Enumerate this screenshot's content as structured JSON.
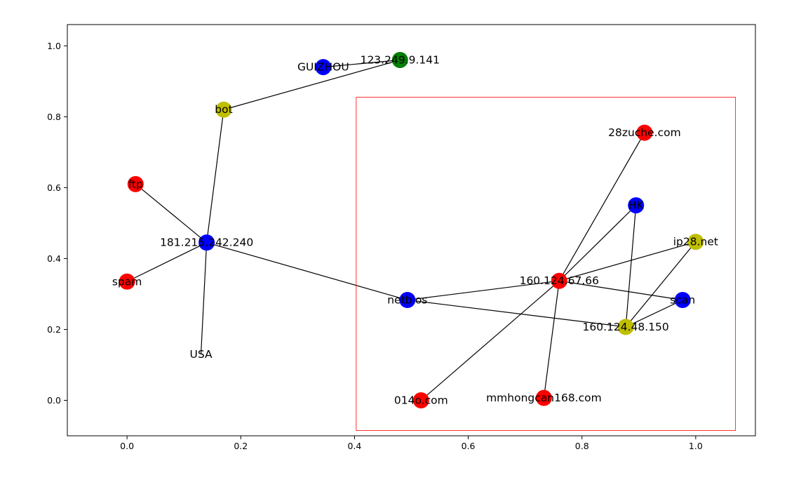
{
  "chart_data": {
    "type": "network",
    "title": "",
    "xlabel": "",
    "ylabel": "",
    "xlim": [
      -0.105,
      1.105
    ],
    "ylim": [
      -0.1,
      1.06
    ],
    "x_ticks": [
      0.0,
      0.2,
      0.4,
      0.6,
      0.8,
      1.0
    ],
    "y_ticks": [
      0.0,
      0.2,
      0.4,
      0.6,
      0.8,
      1.0
    ],
    "x_tick_labels": [
      "0.0",
      "0.2",
      "0.4",
      "0.6",
      "0.8",
      "1.0"
    ],
    "y_tick_labels": [
      "0.0",
      "0.2",
      "0.4",
      "0.6",
      "0.8",
      "1.0"
    ],
    "grid": false,
    "colors": {
      "red": "#ff0000",
      "blue": "#0000ff",
      "green": "#008000",
      "yellow": "#bfbf00",
      "edge": "#000000",
      "highlight": "#ff0000"
    },
    "nodes": [
      {
        "id": "123.249.9.141",
        "x": 0.48,
        "y": 0.96,
        "color": "green"
      },
      {
        "id": "GUIZHOU",
        "x": 0.345,
        "y": 0.94,
        "color": "blue"
      },
      {
        "id": "bot",
        "x": 0.17,
        "y": 0.82,
        "color": "yellow"
      },
      {
        "id": "ftp",
        "x": 0.015,
        "y": 0.61,
        "color": "red"
      },
      {
        "id": "181.215.242.240",
        "x": 0.14,
        "y": 0.445,
        "color": "blue"
      },
      {
        "id": "spam",
        "x": 0.0,
        "y": 0.335,
        "color": "red"
      },
      {
        "id": "USA",
        "x": 0.13,
        "y": 0.13,
        "color": "none"
      },
      {
        "id": "28zuche.com",
        "x": 0.91,
        "y": 0.755,
        "color": "red"
      },
      {
        "id": "HK",
        "x": 0.895,
        "y": 0.55,
        "color": "blue"
      },
      {
        "id": "ip28.net",
        "x": 1.0,
        "y": 0.447,
        "color": "yellow"
      },
      {
        "id": "160.124.67.66",
        "x": 0.76,
        "y": 0.337,
        "color": "red"
      },
      {
        "id": "netbios",
        "x": 0.493,
        "y": 0.283,
        "color": "blue"
      },
      {
        "id": "scan",
        "x": 0.977,
        "y": 0.283,
        "color": "blue"
      },
      {
        "id": "160.124.48.150",
        "x": 0.877,
        "y": 0.207,
        "color": "yellow"
      },
      {
        "id": "014o.com",
        "x": 0.517,
        "y": 0.0,
        "color": "red"
      },
      {
        "id": "mmhongcan168.com",
        "x": 0.733,
        "y": 0.007,
        "color": "red"
      }
    ],
    "edges": [
      [
        "GUIZHOU",
        "123.249.9.141"
      ],
      [
        "bot",
        "123.249.9.141"
      ],
      [
        "bot",
        "181.215.242.240"
      ],
      [
        "ftp",
        "181.215.242.240"
      ],
      [
        "spam",
        "181.215.242.240"
      ],
      [
        "USA",
        "181.215.242.240"
      ],
      [
        "181.215.242.240",
        "netbios"
      ],
      [
        "netbios",
        "160.124.67.66"
      ],
      [
        "netbios",
        "160.124.48.150"
      ],
      [
        "160.124.67.66",
        "28zuche.com"
      ],
      [
        "160.124.67.66",
        "HK"
      ],
      [
        "160.124.67.66",
        "ip28.net"
      ],
      [
        "160.124.67.66",
        "scan"
      ],
      [
        "160.124.67.66",
        "014o.com"
      ],
      [
        "160.124.67.66",
        "mmhongcan168.com"
      ],
      [
        "HK",
        "160.124.48.150"
      ],
      [
        "ip28.net",
        "160.124.48.150"
      ],
      [
        "scan",
        "160.124.48.150"
      ]
    ],
    "highlight_region": {
      "x0": 0.403,
      "x1": 1.07,
      "y0": -0.085,
      "y1": 0.855
    }
  }
}
